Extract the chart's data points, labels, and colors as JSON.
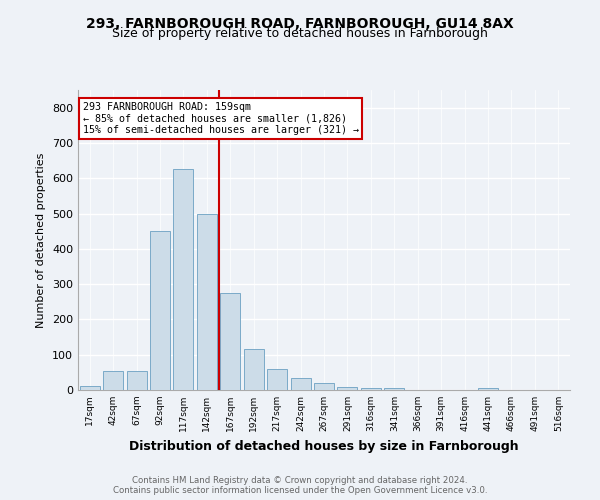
{
  "title1": "293, FARNBOROUGH ROAD, FARNBOROUGH, GU14 8AX",
  "title2": "Size of property relative to detached houses in Farnborough",
  "xlabel": "Distribution of detached houses by size in Farnborough",
  "ylabel": "Number of detached properties",
  "footer1": "Contains HM Land Registry data © Crown copyright and database right 2024.",
  "footer2": "Contains public sector information licensed under the Open Government Licence v3.0.",
  "bin_labels": [
    "17sqm",
    "42sqm",
    "67sqm",
    "92sqm",
    "117sqm",
    "142sqm",
    "167sqm",
    "192sqm",
    "217sqm",
    "242sqm",
    "267sqm",
    "291sqm",
    "316sqm",
    "341sqm",
    "366sqm",
    "391sqm",
    "416sqm",
    "441sqm",
    "466sqm",
    "491sqm",
    "516sqm"
  ],
  "bar_heights": [
    10,
    55,
    55,
    450,
    625,
    500,
    275,
    115,
    60,
    35,
    20,
    8,
    5,
    5,
    0,
    0,
    0,
    5,
    0,
    0,
    0
  ],
  "bar_color": "#ccdce8",
  "bar_edgecolor": "#7aaac8",
  "vline_x": 6.0,
  "vline_color": "#cc0000",
  "annotation_lines": [
    "293 FARNBOROUGH ROAD: 159sqm",
    "← 85% of detached houses are smaller (1,826)",
    "15% of semi-detached houses are larger (321) →"
  ],
  "annotation_box_color": "#cc0000",
  "ylim": [
    0,
    850
  ],
  "yticks": [
    0,
    100,
    200,
    300,
    400,
    500,
    600,
    700,
    800
  ],
  "background_color": "#eef2f7",
  "grid_color": "#d8e4f0",
  "title1_fontsize": 10,
  "title2_fontsize": 9,
  "xlabel_fontsize": 9,
  "ylabel_fontsize": 8
}
